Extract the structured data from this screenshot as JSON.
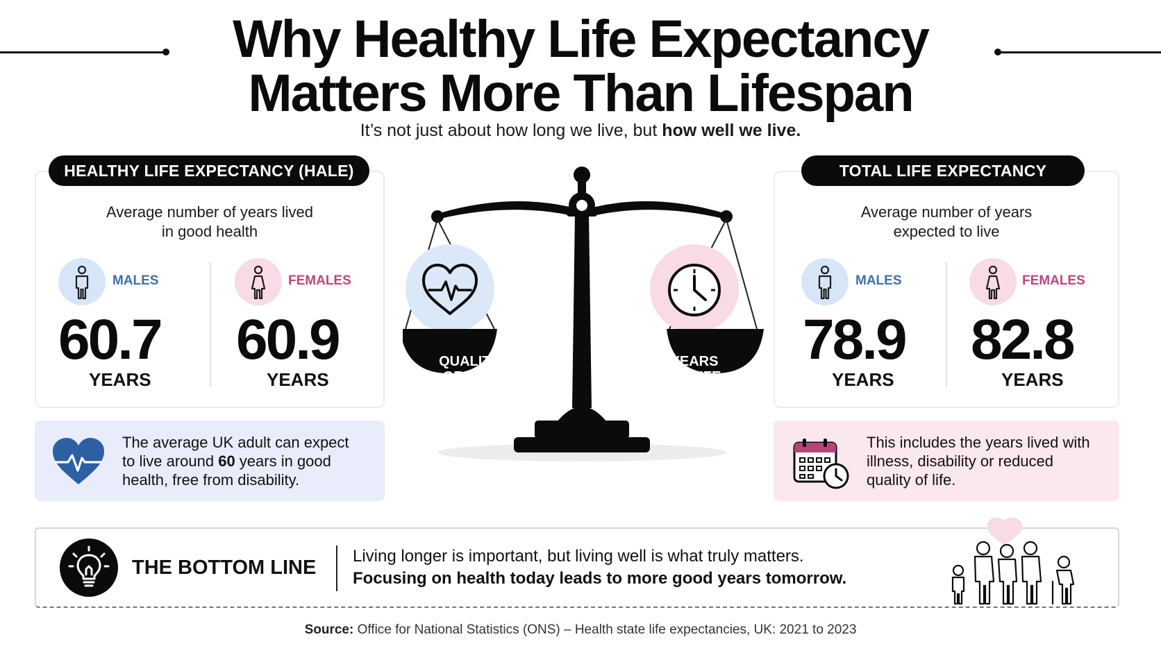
{
  "title": {
    "line1": "Why Healthy Life Expectancy",
    "line2": "Matters More Than Lifespan"
  },
  "subtitle": {
    "prefix": "It’s not just about how long we live, but ",
    "bold": "how well we live."
  },
  "hale": {
    "heading": "HEALTHY LIFE EXPECTANCY (HALE)",
    "desc_line1": "Average number of years lived",
    "desc_line2": "in good health",
    "males": {
      "label": "MALES",
      "value": "60.7",
      "unit": "YEARS"
    },
    "females": {
      "label": "FEMALES",
      "value": "60.9",
      "unit": "YEARS"
    }
  },
  "total": {
    "heading": "TOTAL LIFE EXPECTANCY",
    "desc_line1": "Average number of years",
    "desc_line2": "expected to live",
    "males": {
      "label": "MALES",
      "value": "78.9",
      "unit": "YEARS"
    },
    "females": {
      "label": "FEMALES",
      "value": "82.8",
      "unit": "YEARS"
    }
  },
  "scale": {
    "left_line1": "QUALITY",
    "left_line2": "OF LIFE",
    "right_line1": "YEARS",
    "right_line2": "OF LIFE"
  },
  "hale_note": {
    "line1": "The average UK adult can expect",
    "line2_pre": "to live around ",
    "line2_bold": "60",
    "line2_post": " years in good",
    "line3": "health, free from disability."
  },
  "total_note": {
    "line1": "This includes the years lived with",
    "line2": "illness, disability or reduced",
    "line3": "quality of life."
  },
  "bottom_line": {
    "label": "THE BOTTOM LINE",
    "line1": "Living longer is important, but living well is what truly matters.",
    "line2": "Focusing on health today leads to more good years tomorrow."
  },
  "source": {
    "label": "Source:",
    "text": " Office for National Statistics (ONS) – Health state life expectancies, UK: 2021 to 2023"
  },
  "icons": {
    "male": "male-person-icon",
    "female": "female-person-icon",
    "heart": "heart-pulse-icon",
    "clock": "clock-icon",
    "calendar": "calendar-clock-icon",
    "bulb": "lightbulb-icon",
    "family": "family-group-icon",
    "scale": "balance-scale-icon"
  },
  "colors": {
    "male_accent": "#3f6fae",
    "female_accent": "#c0457c",
    "male_bg": "#d6e6f8",
    "female_bg": "#f8dbe6",
    "hale_note_bg": "#e8ecfb",
    "total_note_bg": "#fbe7ee",
    "heart_blue": "#2d5fa3"
  }
}
